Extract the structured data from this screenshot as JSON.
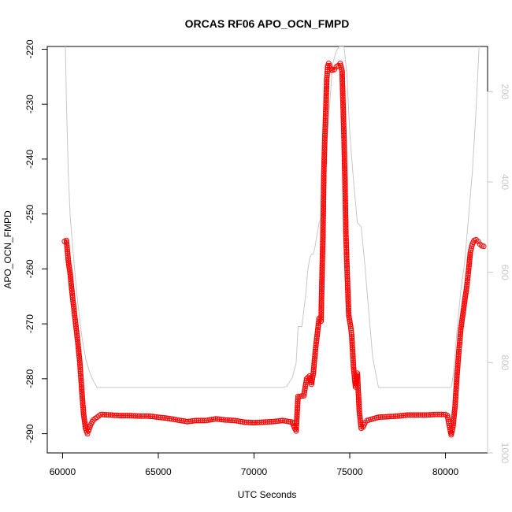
{
  "chart_data": {
    "type": "scatter",
    "title": "ORCAS RF06 APO_OCN_FMPD",
    "xlabel": "UTC Seconds",
    "ylabel": "APO_OCN_FMPD",
    "xlim": [
      59200,
      82200
    ],
    "ylim": [
      -293.5,
      -219.5
    ],
    "y2lim": [
      1000,
      100
    ],
    "x_ticks": [
      60000,
      65000,
      70000,
      75000,
      80000
    ],
    "x_tick_labels": [
      "60000",
      "65000",
      "70000",
      "75000",
      "80000"
    ],
    "y_ticks": [
      -220,
      -230,
      -240,
      -250,
      -260,
      -270,
      -280,
      -290
    ],
    "y_tick_labels": [
      "-220",
      "-230",
      "-240",
      "-250",
      "-260",
      "-270",
      "-280",
      "-290"
    ],
    "y2_ticks": [
      200,
      400,
      600,
      800,
      1000
    ],
    "y2_tick_labels": [
      "200",
      "400",
      "600",
      "800",
      "1000"
    ],
    "colors": {
      "points": "#ff0000",
      "secondary_line": "#c8c8c8",
      "axes": "#000000"
    },
    "series": [
      {
        "role": "primary",
        "marker": "open-circle",
        "x": [
          60100,
          60200,
          60300,
          60400,
          60500,
          60600,
          60700,
          60800,
          60900,
          61000,
          61100,
          61200,
          61300,
          61350,
          61450,
          61600,
          61800,
          62000,
          62500,
          63000,
          63500,
          64000,
          64500,
          65000,
          65500,
          66000,
          66500,
          67000,
          67500,
          68000,
          68500,
          69000,
          69500,
          70000,
          70500,
          71000,
          71500,
          72000,
          72100,
          72200,
          72300,
          72400,
          72600,
          72750,
          72900,
          73000,
          73100,
          73200,
          73300,
          73400,
          73500,
          73600,
          73650,
          73700,
          73750,
          73800,
          73850,
          73900,
          73950,
          74000,
          74050,
          74100,
          74200,
          74300,
          74400,
          74500,
          74600,
          74700,
          74750,
          74800,
          74850,
          74900,
          74950,
          75000,
          75050,
          75100,
          75150,
          75200,
          75300,
          75400,
          75500,
          75600,
          75700,
          75800,
          75900,
          76000,
          76200,
          76500,
          77000,
          77500,
          78000,
          78500,
          79000,
          79500,
          80000,
          80100,
          80200,
          80300,
          80400,
          80500,
          80600,
          80700,
          80800,
          80900,
          81000,
          81100,
          81200,
          81300,
          81400,
          81500,
          81600,
          81700,
          81800,
          81900,
          82000
        ],
        "y": [
          -255.0,
          -254.8,
          -258.5,
          -261.0,
          -264.5,
          -267.5,
          -270.5,
          -273.5,
          -277.0,
          -282.0,
          -286.5,
          -289.0,
          -290.0,
          -289.5,
          -288.5,
          -287.5,
          -287.0,
          -286.5,
          -286.6,
          -286.7,
          -286.7,
          -286.8,
          -286.8,
          -287.0,
          -287.2,
          -287.5,
          -287.8,
          -287.6,
          -287.6,
          -287.3,
          -287.5,
          -287.6,
          -287.9,
          -288.0,
          -287.9,
          -287.8,
          -287.6,
          -287.9,
          -288.8,
          -289.5,
          -283.2,
          -283.2,
          -283.1,
          -280.0,
          -279.5,
          -281.0,
          -279.0,
          -275.0,
          -272.0,
          -269.0,
          -269.5,
          -254.0,
          -242.0,
          -236.0,
          -231.0,
          -225.5,
          -223.0,
          -222.6,
          -223.0,
          -223.5,
          -223.8,
          -223.8,
          -223.7,
          -223.2,
          -223.0,
          -222.6,
          -224.0,
          -236.0,
          -244.0,
          -253.5,
          -259.0,
          -264.0,
          -268.5,
          -269.5,
          -270.5,
          -272.0,
          -275.0,
          -278.0,
          -281.5,
          -279.0,
          -286.0,
          -289.0,
          -288.8,
          -288.0,
          -287.6,
          -287.5,
          -287.3,
          -287.0,
          -286.9,
          -286.8,
          -286.6,
          -286.6,
          -286.6,
          -286.5,
          -286.5,
          -286.7,
          -288.5,
          -290.2,
          -288.5,
          -285.0,
          -279.5,
          -275.0,
          -271.0,
          -268.5,
          -266.0,
          -263.5,
          -260.5,
          -257.0,
          -255.5,
          -254.8,
          -254.7,
          -255.0,
          -255.5,
          -255.8,
          -255.9
        ]
      },
      {
        "role": "secondary-axis-line",
        "x": [
          60100,
          60200,
          60300,
          60400,
          60600,
          60800,
          61000,
          61200,
          61400,
          61600,
          61800,
          62000,
          66000,
          70000,
          71500,
          71700,
          72000,
          72200,
          72300,
          72400,
          72500,
          72700,
          72800,
          72900,
          73000,
          73100,
          73200,
          73400,
          73500,
          73600,
          73700,
          73900,
          74100,
          74300,
          74450,
          74700,
          74850,
          75000,
          75200,
          75400,
          75600,
          75800,
          76000,
          76200,
          76500,
          78000,
          80000,
          80200,
          80300,
          80400,
          80600,
          80800,
          81000,
          81200,
          81400,
          81600,
          81800
        ],
        "y": [
          0,
          220,
          380,
          480,
          580,
          670,
          740,
          790,
          820,
          840,
          855,
          855,
          855,
          855,
          855,
          853,
          833,
          800,
          720,
          720,
          720,
          650,
          600,
          570,
          560,
          560,
          540,
          490,
          480,
          480,
          380,
          260,
          140,
          110,
          100,
          100,
          160,
          290,
          400,
          490,
          500,
          590,
          690,
          790,
          855,
          855,
          855,
          855,
          855,
          830,
          730,
          640,
          580,
          480,
          380,
          240,
          60
        ]
      }
    ]
  }
}
